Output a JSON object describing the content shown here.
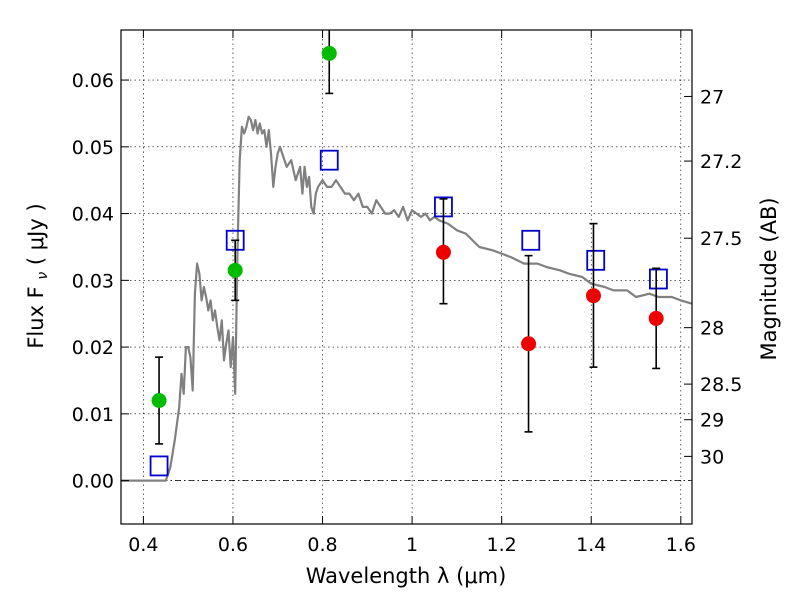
{
  "chart_data": {
    "type": "scatter",
    "xlabel": "Wavelength  λ (μm)",
    "ylabel": "Flux  F",
    "ylabel_sub": "ν",
    "ylabel_unit": "  ( μJy )",
    "y2label": "Magnitude (AB)",
    "xlim": [
      0.35,
      1.625
    ],
    "ylim": [
      -0.0065,
      0.0675
    ],
    "xticks": [
      0.4,
      0.6,
      0.8,
      1.0,
      1.2,
      1.4,
      1.6
    ],
    "xtick_labels": [
      "0.4",
      "0.6",
      "0.8",
      "1",
      "1.2",
      "1.4",
      "1.6"
    ],
    "yticks": [
      0.0,
      0.01,
      0.02,
      0.03,
      0.04,
      0.05,
      0.06
    ],
    "ytick_labels": [
      "0.00",
      "0.01",
      "0.02",
      "0.03",
      "0.04",
      "0.05",
      "0.06"
    ],
    "mag_ticks": [
      27,
      27.2,
      27.5,
      28,
      28.5,
      29,
      30
    ],
    "mag_tick_labels": [
      "27",
      "27.2",
      "27.5",
      "28",
      "28.5",
      "29",
      "30"
    ],
    "grid": true,
    "colors": {
      "green": "#00bb00",
      "red": "#ee0000",
      "model": "#808080",
      "box": "#0000cc",
      "errorbar": "#000000"
    },
    "model_sed": {
      "x": [
        0.35,
        0.44,
        0.45,
        0.46,
        0.47,
        0.48,
        0.485,
        0.49,
        0.495,
        0.5,
        0.505,
        0.51,
        0.515,
        0.52,
        0.525,
        0.53,
        0.535,
        0.54,
        0.545,
        0.55,
        0.555,
        0.56,
        0.565,
        0.57,
        0.575,
        0.58,
        0.585,
        0.59,
        0.595,
        0.6,
        0.605,
        0.61,
        0.615,
        0.62,
        0.625,
        0.63,
        0.635,
        0.64,
        0.645,
        0.65,
        0.655,
        0.66,
        0.665,
        0.67,
        0.675,
        0.68,
        0.685,
        0.69,
        0.695,
        0.7,
        0.705,
        0.71,
        0.72,
        0.73,
        0.74,
        0.75,
        0.755,
        0.76,
        0.765,
        0.77,
        0.775,
        0.78,
        0.785,
        0.79,
        0.8,
        0.81,
        0.82,
        0.83,
        0.84,
        0.85,
        0.86,
        0.87,
        0.88,
        0.89,
        0.9,
        0.91,
        0.92,
        0.93,
        0.94,
        0.95,
        0.96,
        0.97,
        0.98,
        0.99,
        1.0,
        1.01,
        1.02,
        1.03,
        1.04,
        1.05,
        1.06,
        1.08,
        1.1,
        1.12,
        1.15,
        1.18,
        1.2,
        1.22,
        1.25,
        1.28,
        1.3,
        1.33,
        1.35,
        1.38,
        1.4,
        1.43,
        1.45,
        1.48,
        1.5,
        1.53,
        1.55,
        1.58,
        1.6,
        1.625
      ],
      "y": [
        0.0,
        0.0,
        0.0,
        0.002,
        0.006,
        0.011,
        0.016,
        0.013,
        0.02,
        0.02,
        0.0185,
        0.0135,
        0.028,
        0.0325,
        0.031,
        0.027,
        0.029,
        0.0275,
        0.0255,
        0.027,
        0.024,
        0.0255,
        0.023,
        0.021,
        0.024,
        0.018,
        0.0205,
        0.0225,
        0.017,
        0.0215,
        0.013,
        0.034,
        0.048,
        0.053,
        0.052,
        0.053,
        0.0545,
        0.054,
        0.0525,
        0.054,
        0.052,
        0.0535,
        0.052,
        0.0525,
        0.05,
        0.0525,
        0.049,
        0.044,
        0.047,
        0.049,
        0.05,
        0.049,
        0.047,
        0.048,
        0.045,
        0.047,
        0.043,
        0.047,
        0.044,
        0.0455,
        0.041,
        0.04,
        0.043,
        0.044,
        0.045,
        0.044,
        0.044,
        0.045,
        0.044,
        0.043,
        0.043,
        0.042,
        0.043,
        0.041,
        0.041,
        0.04,
        0.042,
        0.041,
        0.04,
        0.04,
        0.0405,
        0.0395,
        0.041,
        0.039,
        0.0405,
        0.04,
        0.0395,
        0.04,
        0.039,
        0.0395,
        0.039,
        0.0385,
        0.0375,
        0.037,
        0.035,
        0.0345,
        0.034,
        0.0335,
        0.0325,
        0.0325,
        0.032,
        0.0315,
        0.031,
        0.0305,
        0.0295,
        0.029,
        0.0285,
        0.0285,
        0.0275,
        0.028,
        0.0275,
        0.0275,
        0.027,
        0.0265
      ]
    },
    "green_points": [
      {
        "x": 0.435,
        "y": 0.012,
        "yerr_low": 0.0055,
        "yerr_high": 0.0185
      },
      {
        "x": 0.605,
        "y": 0.0315,
        "yerr_low": 0.027,
        "yerr_high": 0.036
      },
      {
        "x": 0.815,
        "y": 0.064,
        "yerr_low": 0.058,
        "yerr_high": 0.0675
      }
    ],
    "red_points": [
      {
        "x": 1.07,
        "y": 0.0342,
        "yerr_low": 0.0265,
        "yerr_high": 0.0422
      },
      {
        "x": 1.26,
        "y": 0.0205,
        "yerr_low": 0.0073,
        "yerr_high": 0.0337
      },
      {
        "x": 1.405,
        "y": 0.0277,
        "yerr_low": 0.017,
        "yerr_high": 0.0385
      },
      {
        "x": 1.545,
        "y": 0.0243,
        "yerr_low": 0.0168,
        "yerr_high": 0.0318
      }
    ],
    "model_photometry_boxes": [
      {
        "x": 0.435,
        "y": 0.0022
      },
      {
        "x": 0.605,
        "y": 0.036
      },
      {
        "x": 0.815,
        "y": 0.048
      },
      {
        "x": 1.07,
        "y": 0.041
      },
      {
        "x": 1.265,
        "y": 0.036
      },
      {
        "x": 1.41,
        "y": 0.033
      },
      {
        "x": 1.55,
        "y": 0.0302
      }
    ]
  }
}
